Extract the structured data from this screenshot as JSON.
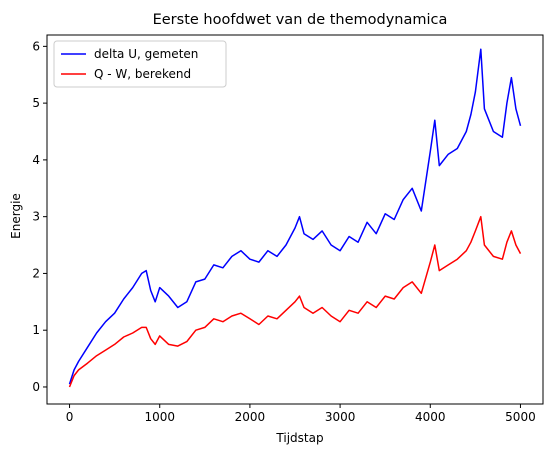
{
  "chart_data": {
    "type": "line",
    "title": "Eerste hoofdwet van de themodynamica",
    "xlabel": "Tijdstap",
    "ylabel": "Energie",
    "xlim": [
      -250,
      5250
    ],
    "ylim": [
      -0.3,
      6.2
    ],
    "xticks": [
      0,
      1000,
      2000,
      3000,
      4000,
      5000
    ],
    "yticks": [
      0,
      1,
      2,
      3,
      4,
      5,
      6
    ],
    "grid": false,
    "legend_position": "top-left",
    "series": [
      {
        "name": "delta U, gemeten",
        "color": "#0000ff",
        "x": [
          0,
          50,
          100,
          200,
          300,
          400,
          500,
          600,
          700,
          800,
          850,
          900,
          950,
          1000,
          1100,
          1200,
          1300,
          1400,
          1500,
          1600,
          1700,
          1800,
          1900,
          2000,
          2100,
          2200,
          2300,
          2400,
          2500,
          2550,
          2600,
          2700,
          2800,
          2900,
          3000,
          3100,
          3200,
          3300,
          3400,
          3500,
          3600,
          3700,
          3800,
          3900,
          4000,
          4050,
          4100,
          4200,
          4300,
          4400,
          4450,
          4500,
          4560,
          4600,
          4700,
          4800,
          4850,
          4900,
          4950,
          5000
        ],
        "values": [
          0.05,
          0.3,
          0.45,
          0.7,
          0.95,
          1.15,
          1.3,
          1.55,
          1.75,
          2.0,
          2.05,
          1.7,
          1.5,
          1.75,
          1.6,
          1.4,
          1.5,
          1.85,
          1.9,
          2.15,
          2.1,
          2.3,
          2.4,
          2.25,
          2.2,
          2.4,
          2.3,
          2.5,
          2.8,
          3.0,
          2.7,
          2.6,
          2.75,
          2.5,
          2.4,
          2.65,
          2.55,
          2.9,
          2.7,
          3.05,
          2.95,
          3.3,
          3.5,
          3.1,
          4.15,
          4.7,
          3.9,
          4.1,
          4.2,
          4.5,
          4.8,
          5.2,
          5.95,
          4.9,
          4.5,
          4.4,
          5.0,
          5.45,
          4.9,
          4.6
        ]
      },
      {
        "name": "Q - W, berekend",
        "color": "#ff0000",
        "x": [
          0,
          50,
          100,
          200,
          300,
          400,
          500,
          600,
          700,
          800,
          850,
          900,
          950,
          1000,
          1100,
          1200,
          1300,
          1400,
          1500,
          1600,
          1700,
          1800,
          1900,
          2000,
          2100,
          2200,
          2300,
          2400,
          2500,
          2550,
          2600,
          2700,
          2800,
          2900,
          3000,
          3100,
          3200,
          3300,
          3400,
          3500,
          3600,
          3700,
          3800,
          3900,
          4000,
          4050,
          4100,
          4200,
          4300,
          4400,
          4450,
          4500,
          4560,
          4600,
          4700,
          4800,
          4850,
          4900,
          4950,
          5000
        ],
        "values": [
          0.0,
          0.2,
          0.3,
          0.42,
          0.55,
          0.65,
          0.75,
          0.88,
          0.95,
          1.05,
          1.05,
          0.85,
          0.75,
          0.9,
          0.75,
          0.72,
          0.8,
          1.0,
          1.05,
          1.2,
          1.15,
          1.25,
          1.3,
          1.2,
          1.1,
          1.25,
          1.2,
          1.35,
          1.5,
          1.6,
          1.4,
          1.3,
          1.4,
          1.25,
          1.15,
          1.35,
          1.3,
          1.5,
          1.4,
          1.6,
          1.55,
          1.75,
          1.85,
          1.65,
          2.2,
          2.5,
          2.05,
          2.15,
          2.25,
          2.4,
          2.55,
          2.75,
          3.0,
          2.5,
          2.3,
          2.25,
          2.55,
          2.75,
          2.5,
          2.35
        ]
      }
    ]
  }
}
